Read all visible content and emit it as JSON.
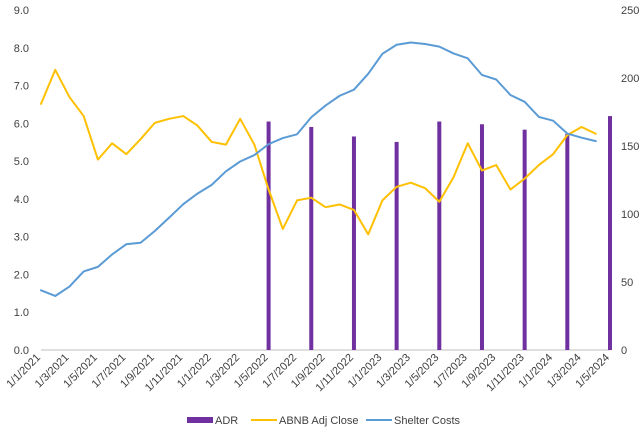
{
  "chart_data": {
    "type": "line",
    "title": "",
    "xlabel": "",
    "ylabel": "",
    "x": [
      "2021-01",
      "2021-02",
      "2021-03",
      "2021-04",
      "2021-05",
      "2021-06",
      "2021-07",
      "2021-08",
      "2021-09",
      "2021-10",
      "2021-11",
      "2021-12",
      "2022-01",
      "2022-02",
      "2022-03",
      "2022-04",
      "2022-05",
      "2022-06",
      "2022-07",
      "2022-08",
      "2022-09",
      "2022-10",
      "2022-11",
      "2022-12",
      "2023-01",
      "2023-02",
      "2023-03",
      "2023-04",
      "2023-05",
      "2023-06",
      "2023-07",
      "2023-08",
      "2023-09",
      "2023-10",
      "2023-11",
      "2023-12",
      "2024-01",
      "2024-02",
      "2024-03",
      "2024-04",
      "2024-05"
    ],
    "x_tick_labels": [
      "1/1/2021",
      "1/3/2021",
      "1/5/2021",
      "1/7/2021",
      "1/9/2021",
      "1/11/2021",
      "1/1/2022",
      "1/3/2022",
      "1/5/2022",
      "1/7/2022",
      "1/9/2022",
      "1/11/2022",
      "1/1/2023",
      "1/3/2023",
      "1/5/2023",
      "1/7/2023",
      "1/9/2023",
      "1/11/2023",
      "1/1/2024",
      "1/3/2024",
      "1/5/2024"
    ],
    "y_left": {
      "ylim": [
        0,
        9
      ],
      "ticks": [
        "0.0",
        "1.0",
        "2.0",
        "3.0",
        "4.0",
        "5.0",
        "6.0",
        "7.0",
        "8.0",
        "9.0"
      ]
    },
    "y_right": {
      "ylim": [
        0,
        250
      ],
      "ticks": [
        "0",
        "50",
        "100",
        "150",
        "200",
        "250"
      ]
    },
    "grid": false,
    "legend_position": "bottom",
    "series": [
      {
        "name": "ADR",
        "type": "bar",
        "axis": "right",
        "color": "#7030A0",
        "x": [
          "2022-05",
          "2022-08",
          "2022-11",
          "2023-02",
          "2023-05",
          "2023-08",
          "2023-11",
          "2024-02",
          "2024-05"
        ],
        "values": [
          168,
          164,
          157,
          153,
          168,
          166,
          162,
          159,
          172
        ]
      },
      {
        "name": "ABNB Adj Close",
        "type": "line",
        "axis": "right",
        "color": "#FFC000",
        "values": [
          181,
          206,
          186,
          172,
          140,
          152,
          144,
          155,
          167,
          170,
          172,
          165,
          153,
          151,
          170,
          151,
          118,
          89,
          110,
          112,
          105,
          107,
          103,
          85,
          110,
          120,
          123,
          119,
          109,
          127,
          152,
          132,
          136,
          118,
          126,
          136,
          144,
          158,
          164,
          159,
          null
        ]
      },
      {
        "name": "Shelter Costs",
        "type": "line",
        "axis": "left",
        "color": "#5B9BD5",
        "values": [
          1.58,
          1.43,
          1.68,
          2.08,
          2.2,
          2.53,
          2.8,
          2.84,
          3.15,
          3.5,
          3.86,
          4.14,
          4.37,
          4.73,
          4.99,
          5.16,
          5.45,
          5.61,
          5.71,
          6.16,
          6.47,
          6.73,
          6.89,
          7.31,
          7.84,
          8.08,
          8.14,
          8.1,
          8.03,
          7.85,
          7.72,
          7.28,
          7.16,
          6.75,
          6.57,
          6.17,
          6.07,
          5.73,
          5.62,
          5.53,
          null
        ]
      }
    ]
  }
}
